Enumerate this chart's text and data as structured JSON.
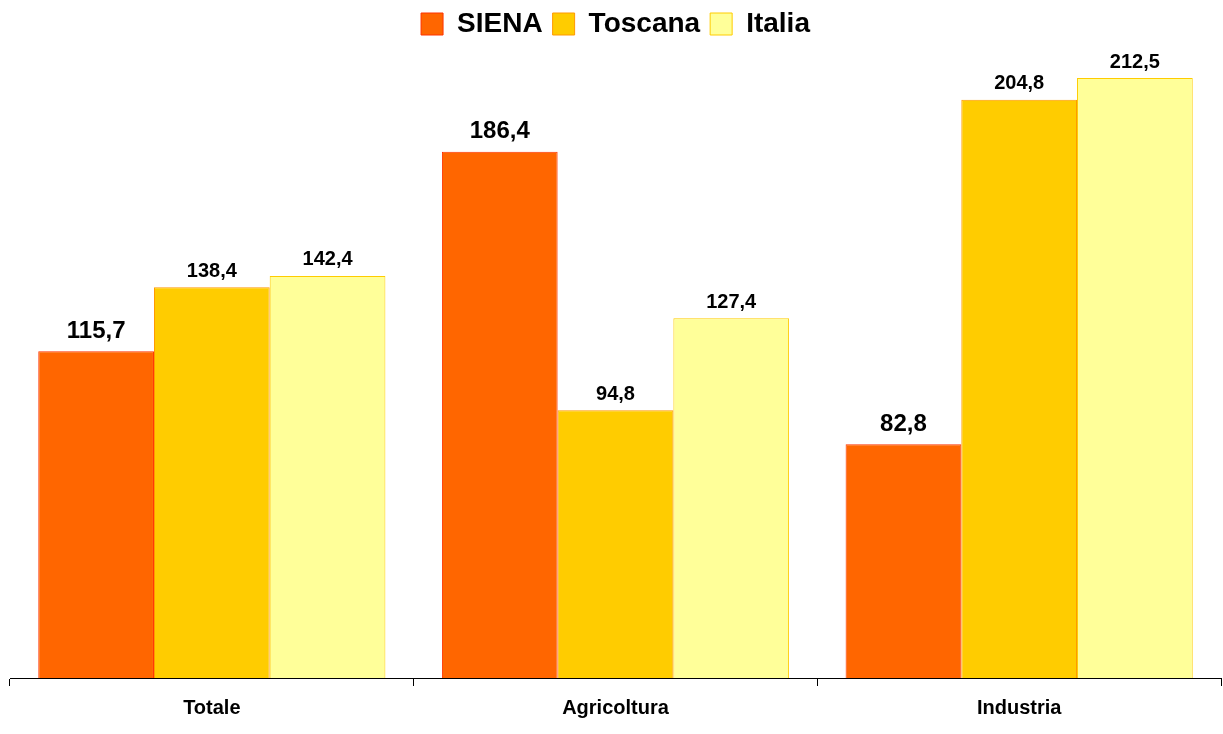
{
  "chart_data": {
    "type": "bar",
    "categories": [
      "Totale",
      "Agricoltura",
      "Industria"
    ],
    "series": [
      {
        "name": "SIENA",
        "color": "#ff6600",
        "values": [
          115.7,
          186.4,
          82.8
        ],
        "value_labels": [
          "115,7",
          "186,4",
          "82,8"
        ]
      },
      {
        "name": "Toscana",
        "color": "#ffcc00",
        "values": [
          138.4,
          94.8,
          204.8
        ],
        "value_labels": [
          "138,4",
          "94,8",
          "204,8"
        ]
      },
      {
        "name": "Italia",
        "color": "#ffff99",
        "values": [
          142.4,
          127.4,
          212.5
        ],
        "value_labels": [
          "142,4",
          "127,4",
          "212,5"
        ]
      }
    ],
    "legend": "top",
    "grid": false
  }
}
